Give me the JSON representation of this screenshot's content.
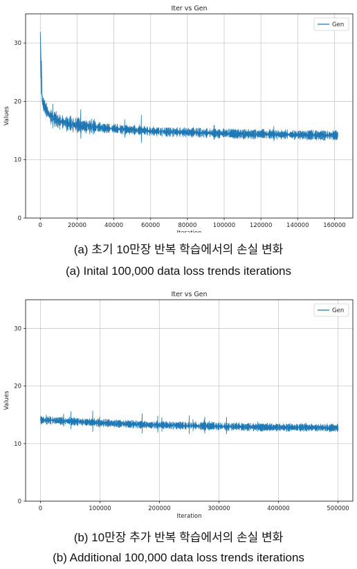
{
  "chart_data": [
    {
      "type": "line",
      "title": "Iter vs Gen",
      "xlabel": "Iteration",
      "ylabel": "Values",
      "legend": {
        "entries": [
          "Gen"
        ],
        "placement": "top-right"
      },
      "grid": true,
      "xlim": [
        -8000,
        170000
      ],
      "ylim": [
        0,
        35
      ],
      "xticks": [
        0,
        20000,
        40000,
        60000,
        80000,
        100000,
        120000,
        140000,
        160000
      ],
      "yticks": [
        0,
        10,
        20,
        30
      ],
      "color": "#1f77b4",
      "series": [
        {
          "name": "Gen",
          "x": [
            0,
            500,
            1000,
            2000,
            3000,
            5000,
            8000,
            10000,
            15000,
            20000,
            30000,
            40000,
            50000,
            60000,
            70000,
            80000,
            90000,
            100000,
            110000,
            120000,
            130000,
            140000,
            150000,
            160000,
            162000
          ],
          "y": [
            31.5,
            22.5,
            20.2,
            19.3,
            18.6,
            17.6,
            17.0,
            16.6,
            16.2,
            15.9,
            15.6,
            15.3,
            15.1,
            14.9,
            14.8,
            14.7,
            14.6,
            14.5,
            14.4,
            14.4,
            14.3,
            14.3,
            14.2,
            14.2,
            14.2
          ]
        }
      ]
    },
    {
      "type": "line",
      "title": "Iter vs Gen",
      "xlabel": "Iteration",
      "ylabel": "Values",
      "legend": {
        "entries": [
          "Gen"
        ],
        "placement": "top-right"
      },
      "grid": true,
      "xlim": [
        -25000,
        525000
      ],
      "ylim": [
        0,
        35
      ],
      "xticks": [
        0,
        100000,
        200000,
        300000,
        400000,
        500000
      ],
      "yticks": [
        0,
        10,
        20,
        30
      ],
      "color": "#1f77b4",
      "series": [
        {
          "name": "Gen",
          "x": [
            0,
            50000,
            100000,
            150000,
            200000,
            250000,
            300000,
            350000,
            400000,
            450000,
            500000
          ],
          "y": [
            14.1,
            13.9,
            13.6,
            13.4,
            13.2,
            13.1,
            13.0,
            12.9,
            12.8,
            12.8,
            12.7
          ]
        }
      ]
    }
  ],
  "captions": {
    "a_korean": "(a) 초기 10만장 반복 학습에서의 손실 변화",
    "a_english": "(a) Inital 100,000 data loss trends iterations",
    "b_korean": "(b) 10만장 추가 반복 학습에서의 손실 변화",
    "b_english": "(b) Additional 100,000 data loss trends iterations"
  }
}
